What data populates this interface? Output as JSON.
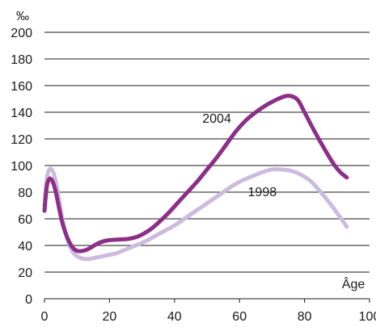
{
  "chart_data": {
    "type": "line",
    "ylabel": "‰",
    "xlabel": "Âge",
    "xlim": [
      0,
      100
    ],
    "ylim": [
      0,
      200
    ],
    "x_ticks": [
      "0",
      "20",
      "40",
      "60",
      "80",
      "100"
    ],
    "y_ticks": [
      "0",
      "20",
      "40",
      "60",
      "80",
      "100",
      "120",
      "140",
      "160",
      "180",
      "200"
    ],
    "grid": "horizontal",
    "series": [
      {
        "name": "1998",
        "color": "#cdbbdd",
        "x": [
          0,
          0.7,
          1.5,
          2.5,
          3.5,
          4.5,
          5.5,
          7,
          8.5,
          10,
          12,
          14,
          16,
          18,
          20,
          22,
          25,
          28,
          31,
          34,
          37,
          40,
          43,
          46,
          49,
          52,
          55,
          58,
          61,
          64,
          67,
          70,
          73,
          76,
          79,
          82,
          85,
          88,
          91,
          93
        ],
        "y": [
          70,
          90,
          97,
          96,
          88,
          74,
          60,
          45,
          36,
          32,
          30,
          30,
          31,
          32,
          33,
          34,
          37,
          40,
          43,
          47,
          51,
          55,
          60,
          65,
          70,
          75,
          80,
          85,
          89,
          92,
          95,
          97,
          97,
          96,
          93,
          88,
          80,
          71,
          61,
          54
        ]
      },
      {
        "name": "2004",
        "color": "#8b2f88",
        "x": [
          0,
          0.7,
          1.5,
          2.5,
          3.5,
          4.5,
          5.5,
          7,
          8.5,
          10,
          12,
          14,
          16,
          18,
          20,
          23,
          26,
          29,
          32,
          35,
          38,
          41,
          44,
          47,
          50,
          53,
          56,
          59,
          62,
          65,
          68,
          71,
          74,
          76,
          78,
          80,
          83,
          86,
          89,
          91,
          93
        ],
        "y": [
          66,
          84,
          90,
          88,
          80,
          68,
          57,
          46,
          39,
          36,
          36,
          38,
          41,
          43,
          44,
          44.5,
          45,
          47,
          51,
          57,
          64,
          72,
          80,
          88,
          97,
          106,
          116,
          126,
          134,
          140,
          145,
          149,
          152,
          152,
          149,
          140,
          126,
          113,
          101,
          95,
          91
        ]
      }
    ],
    "annotations": [
      {
        "text": "2004",
        "x": 53,
        "y": 132
      },
      {
        "text": "1998",
        "x": 67,
        "y": 77
      }
    ]
  }
}
